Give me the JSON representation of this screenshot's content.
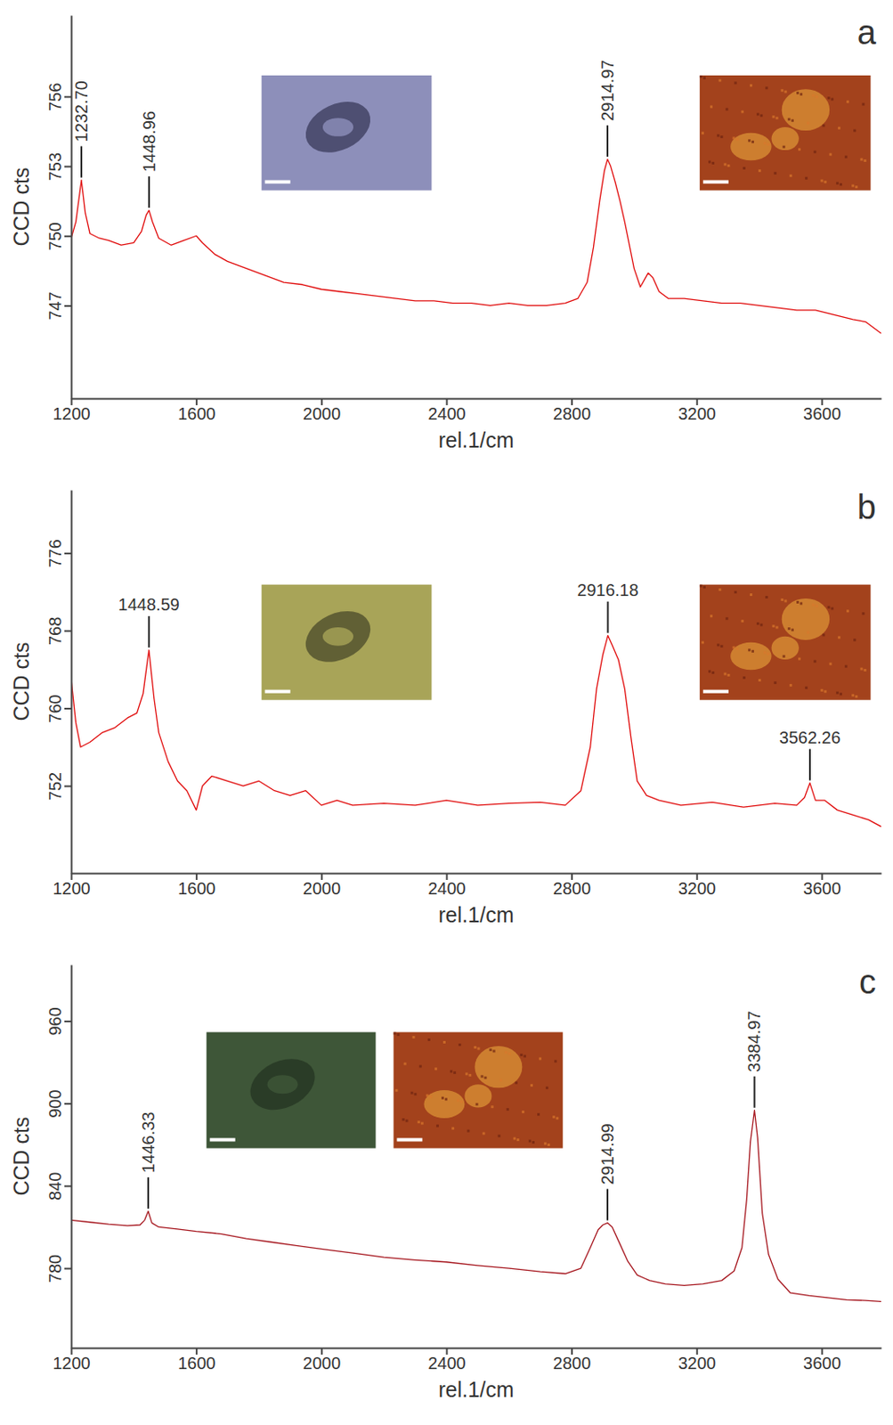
{
  "chart_data": [
    {
      "type": "line",
      "title": "a",
      "x_label": "rel.1/cm",
      "y_label": "CCD cts",
      "xlim": [
        1200,
        3790
      ],
      "xticks": [
        1200,
        1600,
        2000,
        2400,
        2800,
        3200,
        3600
      ],
      "ylim": [
        743,
        759.5
      ],
      "yticks": [
        747,
        750,
        753,
        756
      ],
      "grid": false,
      "series": [
        {
          "color": "#e00a0a",
          "x": [
            1200,
            1215,
            1232.7,
            1245,
            1260,
            1290,
            1320,
            1360,
            1400,
            1425,
            1440,
            1448.96,
            1460,
            1480,
            1520,
            1560,
            1600,
            1620,
            1660,
            1700,
            1760,
            1820,
            1880,
            1940,
            2000,
            2060,
            2120,
            2180,
            2240,
            2300,
            2360,
            2420,
            2480,
            2540,
            2600,
            2660,
            2720,
            2780,
            2820,
            2850,
            2870,
            2890,
            2905,
            2914.97,
            2925,
            2940,
            2955,
            2970,
            2985,
            3000,
            3020,
            3045,
            3060,
            3080,
            3110,
            3160,
            3220,
            3280,
            3340,
            3400,
            3460,
            3520,
            3580,
            3640,
            3700,
            3740,
            3790
          ],
          "values": [
            749.9,
            750.6,
            752.4,
            751.0,
            750.1,
            749.9,
            749.8,
            749.6,
            749.7,
            750.2,
            750.9,
            751.1,
            750.6,
            749.9,
            749.6,
            749.8,
            750.0,
            749.7,
            749.2,
            748.9,
            748.6,
            748.3,
            748.0,
            747.9,
            747.7,
            747.6,
            747.5,
            747.4,
            747.3,
            747.2,
            747.2,
            747.1,
            747.1,
            747.0,
            747.1,
            747.0,
            747.0,
            747.1,
            747.3,
            748.0,
            749.5,
            751.5,
            752.8,
            753.3,
            753.0,
            752.3,
            751.5,
            750.6,
            749.6,
            748.6,
            747.8,
            748.4,
            748.2,
            747.6,
            747.3,
            747.3,
            747.2,
            747.1,
            747.1,
            747.0,
            746.9,
            746.8,
            746.8,
            746.6,
            746.4,
            746.3,
            745.8
          ]
        }
      ],
      "annotations": [
        {
          "x": 1232.7,
          "y": 752.4,
          "label": "1232.70"
        },
        {
          "x": 1448.96,
          "y": 751.1,
          "label": "1448.96"
        },
        {
          "x": 2914.97,
          "y": 753.3,
          "label": "2914.97"
        }
      ]
    },
    {
      "type": "line",
      "title": "b",
      "x_label": "rel.1/cm",
      "y_label": "CCD cts",
      "xlim": [
        1200,
        3790
      ],
      "xticks": [
        1200,
        1600,
        2000,
        2400,
        2800,
        3200,
        3600
      ],
      "ylim": [
        743,
        782.5
      ],
      "yticks": [
        752,
        760,
        768,
        776
      ],
      "grid": false,
      "series": [
        {
          "color": "#e00a0a",
          "x": [
            1200,
            1215,
            1230,
            1260,
            1300,
            1340,
            1380,
            1410,
            1430,
            1448.59,
            1465,
            1480,
            1510,
            1540,
            1570,
            1600,
            1620,
            1650,
            1700,
            1750,
            1800,
            1850,
            1900,
            1950,
            2000,
            2050,
            2100,
            2200,
            2300,
            2400,
            2500,
            2600,
            2700,
            2780,
            2830,
            2860,
            2880,
            2900,
            2916.18,
            2930,
            2950,
            2970,
            2990,
            3010,
            3040,
            3080,
            3150,
            3250,
            3350,
            3450,
            3520,
            3545,
            3562.26,
            3580,
            3610,
            3650,
            3700,
            3750,
            3790
          ],
          "values": [
            763.0,
            758.5,
            756.0,
            756.5,
            757.5,
            758.0,
            759.0,
            759.5,
            761.5,
            766.0,
            761.0,
            757.5,
            754.5,
            752.5,
            751.5,
            749.5,
            752.0,
            753.0,
            752.5,
            752.0,
            752.5,
            751.5,
            751.0,
            751.5,
            750.0,
            750.5,
            750.0,
            750.2,
            750.0,
            750.5,
            750.0,
            750.2,
            750.3,
            750.0,
            751.5,
            756.0,
            762.0,
            765.5,
            767.5,
            766.5,
            765.0,
            762.0,
            757.0,
            752.5,
            751.0,
            750.5,
            750.0,
            750.3,
            749.8,
            750.2,
            750.0,
            750.8,
            752.3,
            750.5,
            750.5,
            749.5,
            749.0,
            748.5,
            747.8
          ]
        }
      ],
      "annotations": [
        {
          "x": 1448.59,
          "y": 766.0,
          "label": "1448.59"
        },
        {
          "x": 2916.18,
          "y": 767.5,
          "label": "2916.18"
        },
        {
          "x": 3562.26,
          "y": 752.3,
          "label": "3562.26"
        }
      ]
    },
    {
      "type": "line",
      "title": "c",
      "x_label": "rel.1/cm",
      "y_label": "CCD cts",
      "xlim": [
        1200,
        3790
      ],
      "xticks": [
        1200,
        1600,
        2000,
        2400,
        2800,
        3200,
        3600
      ],
      "ylim": [
        722,
        1001
      ],
      "yticks": [
        780,
        840,
        900,
        960
      ],
      "grid": false,
      "series": [
        {
          "color": "#a5141c",
          "x": [
            1200,
            1260,
            1320,
            1380,
            1420,
            1435,
            1446.33,
            1458,
            1480,
            1540,
            1600,
            1680,
            1760,
            1840,
            1920,
            2000,
            2100,
            2200,
            2300,
            2400,
            2500,
            2600,
            2700,
            2780,
            2830,
            2860,
            2885,
            2900,
            2914.99,
            2930,
            2950,
            2980,
            3010,
            3050,
            3100,
            3160,
            3220,
            3280,
            3320,
            3345,
            3360,
            3372,
            3384.97,
            3395,
            3410,
            3430,
            3460,
            3500,
            3560,
            3620,
            3680,
            3740,
            3790
          ],
          "values": [
            815.0,
            813.5,
            812.0,
            811.0,
            811.5,
            815.0,
            821.5,
            813.0,
            810.0,
            808.5,
            806.8,
            805.0,
            801.5,
            799.0,
            796.5,
            794.0,
            791.0,
            788.0,
            786.0,
            784.5,
            782.0,
            780.0,
            777.5,
            776.0,
            780.0,
            795.0,
            808.0,
            811.5,
            813.0,
            810.0,
            800.0,
            785.0,
            775.0,
            771.0,
            768.5,
            767.5,
            768.5,
            771.0,
            778.0,
            795.0,
            830.0,
            872.0,
            895.0,
            875.0,
            820.0,
            790.0,
            772.0,
            762.0,
            760.0,
            758.5,
            757.0,
            756.5,
            755.7
          ]
        }
      ],
      "annotations": [
        {
          "x": 1446.33,
          "y": 821.5,
          "label": "1446.33"
        },
        {
          "x": 2914.99,
          "y": 813.0,
          "label": "2914.99"
        },
        {
          "x": 3384.97,
          "y": 895.0,
          "label": "3384.97"
        }
      ]
    }
  ]
}
